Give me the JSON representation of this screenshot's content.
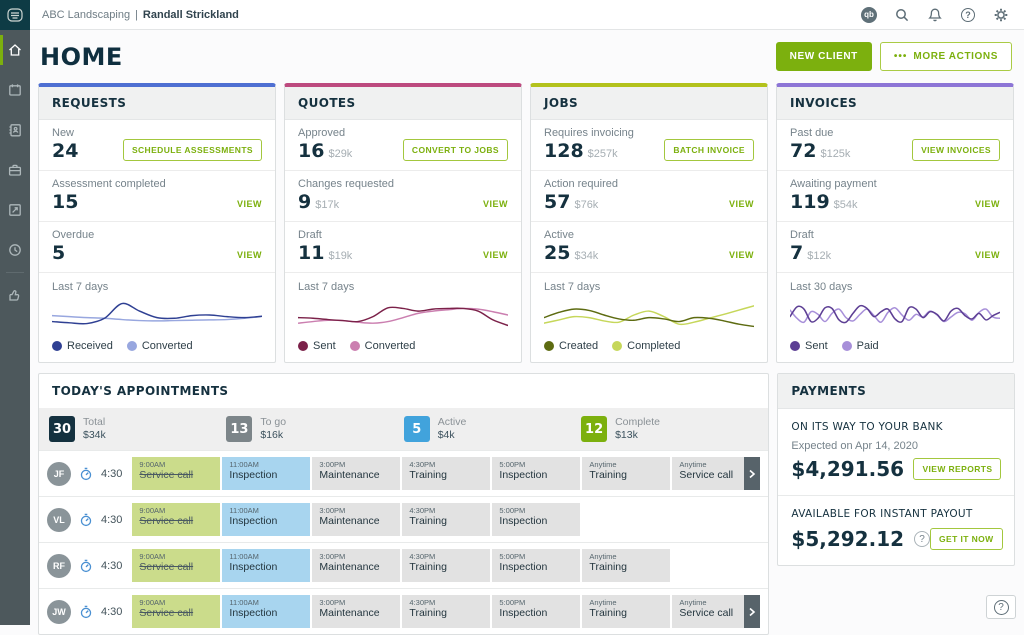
{
  "topbar": {
    "company": "ABC Landscaping",
    "divider": "|",
    "user": "Randall Strickland",
    "quickbooks_label": "qb"
  },
  "page": {
    "title": "HOME",
    "new_client": "NEW CLIENT",
    "more_actions_dots": "•••",
    "more_actions": "MORE ACTIONS"
  },
  "cards": [
    {
      "id": "requests",
      "title": "REQUESTS",
      "accent": "#4e6fd2",
      "rows": [
        {
          "label": "New",
          "value": "24",
          "amount": "",
          "action": "SCHEDULE ASSESSMENTS",
          "action_type": "button"
        },
        {
          "label": "Assessment completed",
          "value": "15",
          "amount": "",
          "action": "VIEW",
          "action_type": "link"
        },
        {
          "label": "Overdue",
          "value": "5",
          "amount": "",
          "action": "VIEW",
          "action_type": "link"
        }
      ],
      "spark": {
        "label": "Last 7 days",
        "series": [
          {
            "name": "Received",
            "color": "#2f4093",
            "values": [
              0.3,
              0.26,
              0.24,
              0.4,
              0.85,
              0.62,
              0.42,
              0.4,
              0.48,
              0.5,
              0.45,
              0.42,
              0.46
            ]
          },
          {
            "name": "Converted",
            "color": "#98a7df",
            "values": [
              0.48,
              0.45,
              0.42,
              0.4,
              0.36,
              0.33,
              0.32,
              0.33,
              0.34,
              0.35,
              0.36,
              0.4,
              0.46
            ]
          }
        ]
      }
    },
    {
      "id": "quotes",
      "title": "QUOTES",
      "accent": "#bd4a7f",
      "rows": [
        {
          "label": "Approved",
          "value": "16",
          "amount": "$29k",
          "action": "CONVERT TO JOBS",
          "action_type": "button"
        },
        {
          "label": "Changes requested",
          "value": "9",
          "amount": "$17k",
          "action": "VIEW",
          "action_type": "link"
        },
        {
          "label": "Draft",
          "value": "11",
          "amount": "$19k",
          "action": "VIEW",
          "action_type": "link"
        }
      ],
      "spark": {
        "label": "Last 7 days",
        "series": [
          {
            "name": "Sent",
            "color": "#7b2149",
            "values": [
              0.42,
              0.4,
              0.36,
              0.33,
              0.3,
              0.45,
              0.72,
              0.7,
              0.62,
              0.68,
              0.7,
              0.7,
              0.62,
              0.35,
              0.18
            ]
          },
          {
            "name": "Converted",
            "color": "#cb7fb0",
            "values": [
              0.25,
              0.3,
              0.34,
              0.33,
              0.28,
              0.25,
              0.3,
              0.42,
              0.55,
              0.62,
              0.66,
              0.7,
              0.68,
              0.6,
              0.5
            ]
          }
        ]
      }
    },
    {
      "id": "jobs",
      "title": "JOBS",
      "accent": "#b3c21c",
      "rows": [
        {
          "label": "Requires invoicing",
          "value": "128",
          "amount": "$257k",
          "action": "BATCH INVOICE",
          "action_type": "button"
        },
        {
          "label": "Action required",
          "value": "57",
          "amount": "$76k",
          "action": "VIEW",
          "action_type": "link"
        },
        {
          "label": "Active",
          "value": "25",
          "amount": "$34k",
          "action": "VIEW",
          "action_type": "link"
        }
      ],
      "spark": {
        "label": "Last 7 days",
        "series": [
          {
            "name": "Created",
            "color": "#5d6b11",
            "values": [
              0.42,
              0.58,
              0.68,
              0.64,
              0.5,
              0.38,
              0.34,
              0.42,
              0.38,
              0.3,
              0.42,
              0.4,
              0.32,
              0.22,
              0.15
            ]
          },
          {
            "name": "Completed",
            "color": "#c6d75a",
            "values": [
              0.25,
              0.35,
              0.45,
              0.42,
              0.32,
              0.28,
              0.5,
              0.62,
              0.45,
              0.22,
              0.28,
              0.4,
              0.52,
              0.65,
              0.78
            ]
          }
        ]
      }
    },
    {
      "id": "invoices",
      "title": "INVOICES",
      "accent": "#8d75d6",
      "rows": [
        {
          "label": "Past due",
          "value": "72",
          "amount": "$125k",
          "action": "VIEW INVOICES",
          "action_type": "button"
        },
        {
          "label": "Awaiting payment",
          "value": "119",
          "amount": "$54k",
          "action": "VIEW",
          "action_type": "link"
        },
        {
          "label": "Draft",
          "value": "7",
          "amount": "$12k",
          "action": "VIEW",
          "action_type": "link"
        }
      ],
      "spark": {
        "label": "Last 30 days",
        "series": [
          {
            "name": "Sent",
            "color": "#5d3f94",
            "values": [
              0.45,
              0.75,
              0.68,
              0.3,
              0.4,
              0.72,
              0.7,
              0.35,
              0.28,
              0.55,
              0.78,
              0.7,
              0.45,
              0.6,
              0.68,
              0.38,
              0.3,
              0.72,
              0.68,
              0.42,
              0.6,
              0.52,
              0.32,
              0.62,
              0.7,
              0.48,
              0.38,
              0.55,
              0.35,
              0.48,
              0.58
            ]
          },
          {
            "name": "Paid",
            "color": "#a78fd9",
            "values": [
              0.65,
              0.4,
              0.28,
              0.6,
              0.52,
              0.3,
              0.55,
              0.68,
              0.42,
              0.32,
              0.52,
              0.68,
              0.48,
              0.28,
              0.58,
              0.72,
              0.5,
              0.34,
              0.52,
              0.44,
              0.62,
              0.5,
              0.3,
              0.44,
              0.58,
              0.54,
              0.34,
              0.58,
              0.68,
              0.44,
              0.4
            ]
          }
        ]
      }
    }
  ],
  "appointments": {
    "title": "TODAY'S APPOINTMENTS",
    "stats": [
      {
        "count": "30",
        "label": "Total",
        "amount": "$34k",
        "color": "#14313f"
      },
      {
        "count": "13",
        "label": "To go",
        "amount": "$16k",
        "color": "#7c8589"
      },
      {
        "count": "5",
        "label": "Active",
        "amount": "$4k",
        "color": "#41a3dc"
      },
      {
        "count": "12",
        "label": "Complete",
        "amount": "$13k",
        "color": "#7cb00e"
      }
    ],
    "rows": [
      {
        "initials": "JF",
        "time": "4:30",
        "has_more": true,
        "chips": [
          {
            "time": "9:00AM",
            "label": "Service call",
            "type": "done"
          },
          {
            "time": "11:00AM",
            "label": "Inspection",
            "type": "active"
          },
          {
            "time": "3:00PM",
            "label": "Maintenance",
            "type": "default"
          },
          {
            "time": "4:30PM",
            "label": "Training",
            "type": "default"
          },
          {
            "time": "5:00PM",
            "label": "Inspection",
            "type": "default"
          },
          {
            "time": "Anytime",
            "label": "Training",
            "type": "default"
          },
          {
            "time": "Anytime",
            "label": "Service call",
            "type": "default"
          }
        ]
      },
      {
        "initials": "VL",
        "time": "4:30",
        "has_more": false,
        "chips": [
          {
            "time": "9:00AM",
            "label": "Service call",
            "type": "done"
          },
          {
            "time": "11:00AM",
            "label": "Inspection",
            "type": "active"
          },
          {
            "time": "3:00PM",
            "label": "Maintenance",
            "type": "default"
          },
          {
            "time": "4:30PM",
            "label": "Training",
            "type": "default"
          },
          {
            "time": "5:00PM",
            "label": "Inspection",
            "type": "default"
          }
        ]
      },
      {
        "initials": "RF",
        "time": "4:30",
        "has_more": false,
        "chips": [
          {
            "time": "9:00AM",
            "label": "Service call",
            "type": "done"
          },
          {
            "time": "11:00AM",
            "label": "Inspection",
            "type": "active"
          },
          {
            "time": "3:00PM",
            "label": "Maintenance",
            "type": "default"
          },
          {
            "time": "4:30PM",
            "label": "Training",
            "type": "default"
          },
          {
            "time": "5:00PM",
            "label": "Inspection",
            "type": "default"
          },
          {
            "time": "Anytime",
            "label": "Training",
            "type": "default"
          }
        ]
      },
      {
        "initials": "JW",
        "time": "4:30",
        "has_more": true,
        "chips": [
          {
            "time": "9:00AM",
            "label": "Service call",
            "type": "done"
          },
          {
            "time": "11:00AM",
            "label": "Inspection",
            "type": "active"
          },
          {
            "time": "3:00PM",
            "label": "Maintenance",
            "type": "default"
          },
          {
            "time": "4:30PM",
            "label": "Training",
            "type": "default"
          },
          {
            "time": "5:00PM",
            "label": "Inspection",
            "type": "default"
          },
          {
            "time": "Anytime",
            "label": "Training",
            "type": "default"
          },
          {
            "time": "Anytime",
            "label": "Service call",
            "type": "default"
          }
        ]
      }
    ]
  },
  "payments": {
    "title": "PAYMENTS",
    "bank": {
      "heading": "ON ITS WAY TO YOUR BANK",
      "subtext": "Expected on Apr 14, 2020",
      "amount": "$4,291.56",
      "action": "VIEW REPORTS"
    },
    "instant": {
      "heading": "AVAILABLE FOR INSTANT PAYOUT",
      "amount": "$5,292.12",
      "info_icon": "?",
      "action": "GET IT NOW"
    }
  },
  "help_fab": "?"
}
